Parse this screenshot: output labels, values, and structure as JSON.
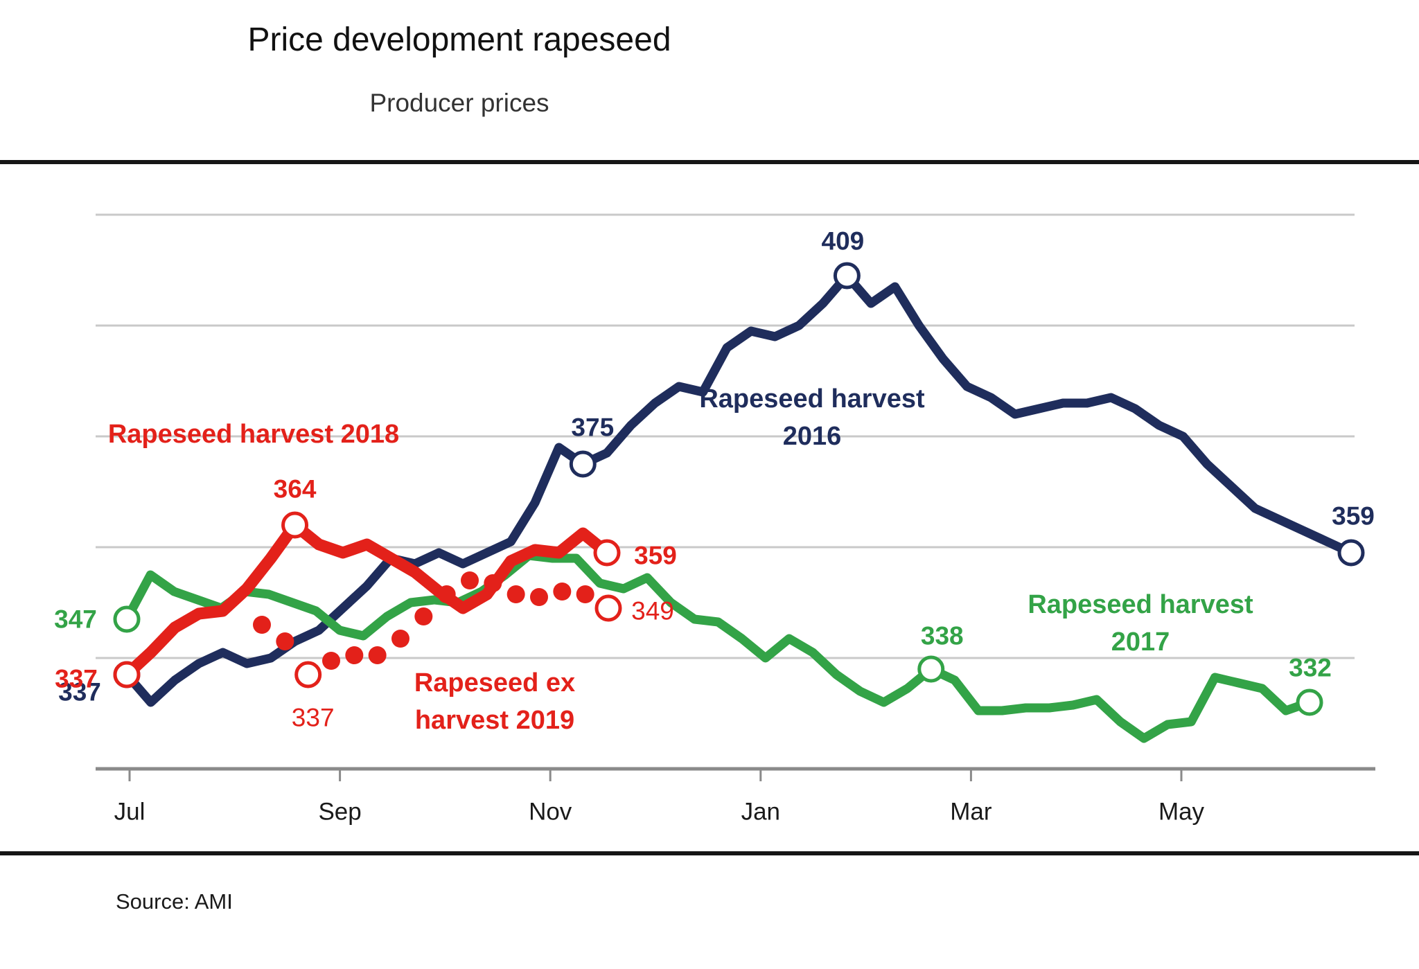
{
  "header": {
    "title": "Price development rapeseed",
    "subtitle": "Producer prices"
  },
  "footer": {
    "source": "Source: AMI"
  },
  "chart_data": {
    "type": "line",
    "title": "Price development rapeseed",
    "subtitle": "Producer prices",
    "grid": "horizontal-only",
    "y_gridlines": [
      420,
      400,
      380,
      360,
      340
    ],
    "x_ticks": [
      "Jul",
      "Sep",
      "Nov",
      "Jan",
      "Mar",
      "May"
    ],
    "x_note": "weekly values from July to end of June",
    "series": [
      {
        "id": "h2016",
        "name": "Rapeseed harvest 2016",
        "label_lines": [
          "Rapeseed harvest",
          "2016"
        ],
        "style": "solid",
        "color": "#1f2d5c",
        "values": [
          337,
          332,
          336,
          339,
          341,
          339,
          340,
          343,
          345,
          349,
          353,
          358,
          357,
          359,
          357,
          359,
          361,
          368,
          378,
          375,
          377,
          382,
          386,
          389,
          388,
          396,
          399,
          398,
          400,
          404,
          409,
          404,
          407,
          400,
          394,
          389,
          387,
          384,
          385,
          386,
          386,
          387,
          385,
          382,
          380,
          375,
          371,
          367,
          365,
          363,
          361,
          359
        ],
        "annotations": [
          {
            "at": 0,
            "text": "337",
            "dx": -68,
            "dy": 25,
            "marker": true
          },
          {
            "at": 19,
            "text": "375",
            "dx": 14,
            "dy": -53,
            "marker": true
          },
          {
            "at": 30,
            "text": "409",
            "dx": -6,
            "dy": -50,
            "marker": true
          },
          {
            "at": 51,
            "text": "359",
            "dx": 3,
            "dy": -53,
            "marker": true
          }
        ]
      },
      {
        "id": "h2017",
        "name": "Rapeseed harvest 2017",
        "label_lines": [
          "Rapeseed harvest",
          "2017"
        ],
        "style": "solid",
        "color": "#33a347",
        "values": [
          347,
          355,
          352,
          350.5,
          349,
          352,
          351.5,
          350,
          348.5,
          345,
          344,
          347.5,
          350,
          350.5,
          350,
          352,
          355,
          358.5,
          358,
          358,
          353.5,
          352.5,
          354.5,
          350,
          347,
          346.5,
          343.5,
          340,
          343.5,
          341,
          337,
          334,
          332,
          334.5,
          338,
          336,
          330.5,
          330.5,
          331,
          331,
          331.5,
          332.5,
          328.5,
          325.5,
          328,
          328.5,
          336.5,
          335.5,
          334.5,
          330.5,
          332
        ],
        "annotations": [
          {
            "at": 0,
            "text": "347",
            "dx": -74,
            "dy": 0,
            "marker": true
          },
          {
            "at": 34,
            "text": "338",
            "dx": 16,
            "dy": -48,
            "marker": true
          },
          {
            "at": 50,
            "text": "332",
            "dx": 1,
            "dy": -50,
            "marker": true
          }
        ]
      },
      {
        "id": "h2018",
        "name": "Rapeseed harvest 2018",
        "label_lines": [
          "Rapeseed harvest 2018"
        ],
        "style": "solid",
        "color": "#e3211a",
        "values": [
          337,
          341,
          345.5,
          348,
          348.5,
          352.5,
          358,
          364,
          360.5,
          359,
          360.5,
          358,
          355.5,
          352,
          349,
          351.5,
          357.5,
          359.5,
          359,
          362.5,
          359
        ],
        "annotations": [
          {
            "at": 0,
            "text": "337",
            "dx": -73,
            "dy": 6,
            "marker": true
          },
          {
            "at": 7,
            "text": "364",
            "dx": 0,
            "dy": -52,
            "marker": true
          },
          {
            "at": 20,
            "text": "359",
            "dx": 70,
            "dy": 4,
            "marker": true
          }
        ]
      },
      {
        "id": "ex2019",
        "name": "Rapeseed ex harvest 2019",
        "label_lines": [
          "Rapeseed ex",
          "harvest 2019"
        ],
        "style": "dotted",
        "color": "#e3211a",
        "values": [
          346,
          343,
          337,
          339.5,
          340.5,
          340.5,
          343.5,
          347.5,
          351.5,
          354,
          353.5,
          351.5,
          351,
          352,
          351.5,
          349
        ],
        "annotations": [
          {
            "at": 2,
            "text": "337",
            "dx": 7,
            "dy": 62,
            "marker": true,
            "weight": "normal"
          },
          {
            "at": 15,
            "text": "349",
            "dx": 64,
            "dy": 4,
            "marker": true,
            "weight": "normal"
          }
        ]
      }
    ]
  }
}
